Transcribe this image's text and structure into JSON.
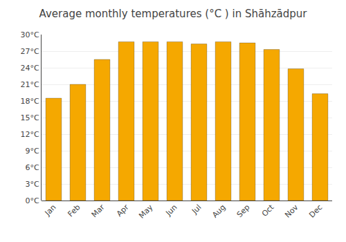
{
  "chart_data": {
    "type": "bar",
    "title": "Average monthly temperatures (°C ) in Shāhzādpur",
    "categories": [
      "Jan",
      "Feb",
      "Mar",
      "Apr",
      "May",
      "Jun",
      "Jul",
      "Aug",
      "Sep",
      "Oct",
      "Nov",
      "Dec"
    ],
    "values": [
      18.5,
      21.0,
      25.5,
      28.7,
      28.7,
      28.7,
      28.3,
      28.7,
      28.5,
      27.3,
      23.8,
      19.3
    ],
    "color": "#F5A800",
    "ylim": [
      0,
      30
    ],
    "yticks": [
      {
        "value": 0,
        "label": "0°C"
      },
      {
        "value": 3,
        "label": "3°C"
      },
      {
        "value": 6,
        "label": "6°C"
      },
      {
        "value": 9,
        "label": "9°C"
      },
      {
        "value": 12,
        "label": "12°C"
      },
      {
        "value": 15,
        "label": "15°C"
      },
      {
        "value": 18,
        "label": "18°C"
      },
      {
        "value": 21,
        "label": "21°C"
      },
      {
        "value": 24,
        "label": "24°C"
      },
      {
        "value": 27,
        "label": "27°C"
      },
      {
        "value": 30,
        "label": "30°C"
      }
    ],
    "grid": true
  }
}
